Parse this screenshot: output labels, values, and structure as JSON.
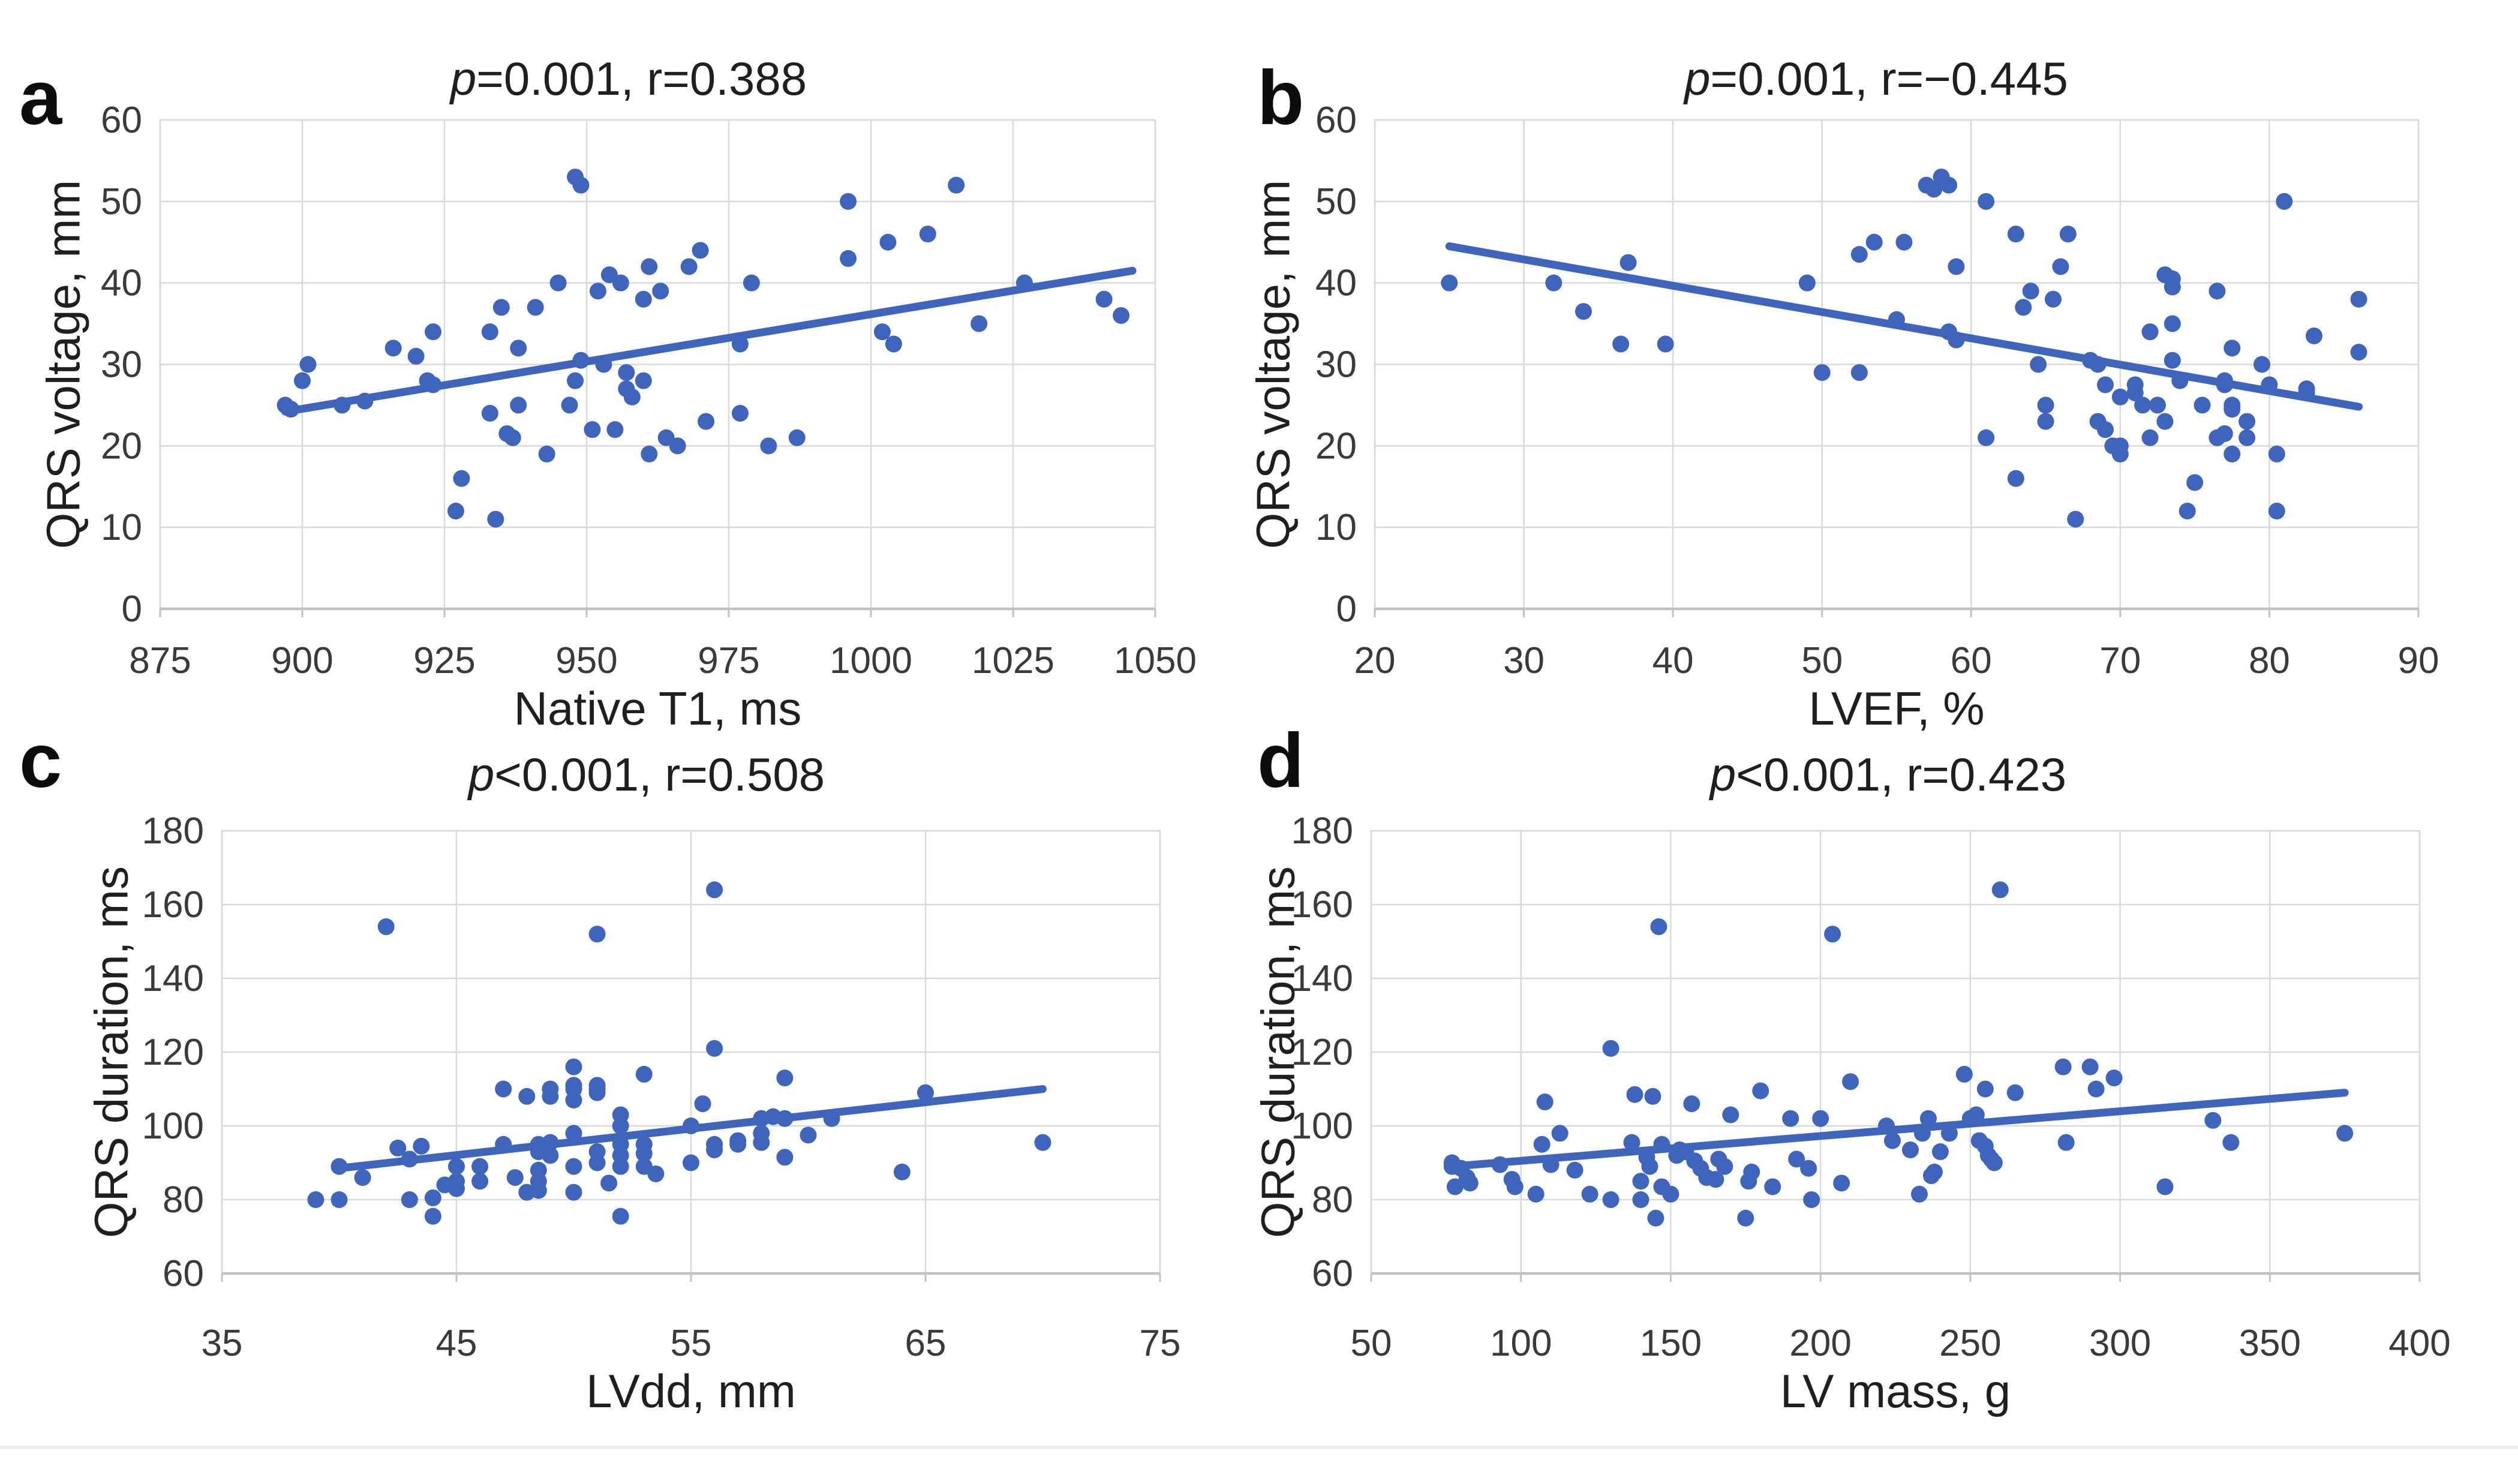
{
  "colors": {
    "background": "#FFFFFF",
    "marker": "#3E64BC",
    "trend": "#3E64BC",
    "grid": "#D9D9D9",
    "axis": "#C2C2C2",
    "tick_text": "#3A3A3A",
    "title_text": "#1F1F1F",
    "divider": "#EDEDED"
  },
  "chart_data": [
    {
      "id": "a",
      "panel_label": "a",
      "type": "scatter",
      "title": "p=0.001, r=0.388",
      "xlabel": "Native T1, ms",
      "ylabel": "QRS voltage, mm",
      "xlim": [
        875,
        1050
      ],
      "ylim": [
        0,
        60
      ],
      "xticks": [
        875,
        900,
        925,
        950,
        975,
        1000,
        1025,
        1050
      ],
      "yticks": [
        0,
        10,
        20,
        30,
        40,
        50,
        60
      ],
      "grid": true,
      "legend": false,
      "points": [
        [
          897,
          25
        ],
        [
          898,
          24.5
        ],
        [
          900,
          28
        ],
        [
          901,
          30
        ],
        [
          907,
          25
        ],
        [
          911,
          25.5
        ],
        [
          916,
          32
        ],
        [
          920,
          31
        ],
        [
          922,
          28
        ],
        [
          923,
          27.5
        ],
        [
          923,
          34
        ],
        [
          927,
          12
        ],
        [
          928,
          16
        ],
        [
          933,
          24
        ],
        [
          933,
          34
        ],
        [
          934,
          11
        ],
        [
          935,
          37
        ],
        [
          936,
          21.5
        ],
        [
          937,
          21
        ],
        [
          938,
          25
        ],
        [
          938,
          32
        ],
        [
          941,
          37
        ],
        [
          943,
          19
        ],
        [
          945,
          40
        ],
        [
          947,
          25
        ],
        [
          948,
          53
        ],
        [
          948,
          28
        ],
        [
          949,
          52
        ],
        [
          949,
          30.5
        ],
        [
          951,
          22
        ],
        [
          952,
          39
        ],
        [
          953,
          30
        ],
        [
          954,
          41
        ],
        [
          955,
          22
        ],
        [
          956,
          40
        ],
        [
          957,
          29
        ],
        [
          957,
          27
        ],
        [
          958,
          26
        ],
        [
          960,
          28
        ],
        [
          960,
          38
        ],
        [
          961,
          19
        ],
        [
          961,
          42
        ],
        [
          963,
          39
        ],
        [
          964,
          21
        ],
        [
          966,
          20
        ],
        [
          968,
          42
        ],
        [
          970,
          44
        ],
        [
          971,
          23
        ],
        [
          977,
          24
        ],
        [
          977,
          32.5
        ],
        [
          979,
          40
        ],
        [
          982,
          20
        ],
        [
          987,
          21
        ],
        [
          996,
          43
        ],
        [
          996,
          50
        ],
        [
          1002,
          34
        ],
        [
          1003,
          45
        ],
        [
          1004,
          32.5
        ],
        [
          1010,
          46
        ],
        [
          1015,
          52
        ],
        [
          1019,
          35
        ],
        [
          1027,
          40
        ],
        [
          1041,
          38
        ],
        [
          1044,
          36
        ]
      ],
      "trend": {
        "x": [
          897,
          1046
        ],
        "y": [
          24.2,
          41.5
        ]
      }
    },
    {
      "id": "b",
      "panel_label": "b",
      "type": "scatter",
      "title": "p=0.001, r=−0.445",
      "xlabel": "LVEF, %",
      "ylabel": "QRS voltage, mm",
      "xlim": [
        20,
        90
      ],
      "ylim": [
        0,
        60
      ],
      "xticks": [
        20,
        30,
        40,
        50,
        60,
        70,
        80,
        90
      ],
      "yticks": [
        0,
        10,
        20,
        30,
        40,
        50,
        60
      ],
      "grid": true,
      "legend": false,
      "points": [
        [
          25,
          40
        ],
        [
          32,
          40
        ],
        [
          34,
          36.5
        ],
        [
          36.5,
          32.5
        ],
        [
          37,
          42.5
        ],
        [
          39.5,
          32.5
        ],
        [
          49,
          40
        ],
        [
          50,
          29
        ],
        [
          52.5,
          43.5
        ],
        [
          52.5,
          29
        ],
        [
          53.5,
          45
        ],
        [
          55,
          35.5
        ],
        [
          55.5,
          45
        ],
        [
          57,
          52
        ],
        [
          57.5,
          51.5
        ],
        [
          58,
          53
        ],
        [
          58.5,
          52
        ],
        [
          58.5,
          34
        ],
        [
          59,
          33
        ],
        [
          59,
          42
        ],
        [
          61,
          50
        ],
        [
          61,
          21
        ],
        [
          63,
          16
        ],
        [
          63,
          46
        ],
        [
          63.5,
          37
        ],
        [
          64,
          39
        ],
        [
          64.5,
          30
        ],
        [
          65,
          23
        ],
        [
          65,
          25
        ],
        [
          65.5,
          38
        ],
        [
          66,
          42
        ],
        [
          66.5,
          46
        ],
        [
          67,
          11
        ],
        [
          68,
          30.5
        ],
        [
          68.5,
          30
        ],
        [
          68.5,
          23
        ],
        [
          69,
          22
        ],
        [
          69,
          27.5
        ],
        [
          69.5,
          20
        ],
        [
          70,
          20
        ],
        [
          70,
          19
        ],
        [
          70,
          26
        ],
        [
          71,
          26.5
        ],
        [
          71,
          27.5
        ],
        [
          71.5,
          25
        ],
        [
          72,
          34
        ],
        [
          72,
          21
        ],
        [
          72.5,
          25
        ],
        [
          73,
          41
        ],
        [
          73,
          23
        ],
        [
          73.5,
          40.5
        ],
        [
          73.5,
          39.5
        ],
        [
          73.5,
          30.5
        ],
        [
          73.5,
          35
        ],
        [
          74,
          28
        ],
        [
          74.5,
          12
        ],
        [
          75,
          15.5
        ],
        [
          75.5,
          25
        ],
        [
          76.5,
          39
        ],
        [
          76.5,
          21
        ],
        [
          77,
          21.5
        ],
        [
          77,
          27.5
        ],
        [
          77,
          28
        ],
        [
          77.5,
          32
        ],
        [
          77.5,
          25
        ],
        [
          77.5,
          24.5
        ],
        [
          77.5,
          19
        ],
        [
          78.5,
          21
        ],
        [
          78.5,
          23
        ],
        [
          79.5,
          30
        ],
        [
          80,
          27.5
        ],
        [
          80.5,
          19
        ],
        [
          80.5,
          12
        ],
        [
          81,
          50
        ],
        [
          82.5,
          27
        ],
        [
          82.5,
          26.5
        ],
        [
          83,
          33.5
        ],
        [
          86,
          38
        ],
        [
          86,
          31.5
        ]
      ],
      "trend": {
        "x": [
          25,
          86
        ],
        "y": [
          44.5,
          24.8
        ]
      }
    },
    {
      "id": "c",
      "panel_label": "c",
      "type": "scatter",
      "title": "p<0.001, r=0.508",
      "xlabel": "LVdd, mm",
      "ylabel": "QRS duration, ms",
      "xlim": [
        35,
        75
      ],
      "ylim": [
        60,
        180
      ],
      "xticks": [
        35,
        45,
        55,
        65,
        75
      ],
      "yticks": [
        60,
        80,
        100,
        120,
        140,
        160,
        180
      ],
      "grid": true,
      "legend": false,
      "points": [
        [
          39,
          80
        ],
        [
          40,
          80
        ],
        [
          40,
          89
        ],
        [
          41,
          86
        ],
        [
          42,
          154
        ],
        [
          42.5,
          94
        ],
        [
          43,
          91
        ],
        [
          43,
          80
        ],
        [
          43.5,
          94.5
        ],
        [
          44,
          75.5
        ],
        [
          44,
          80.5
        ],
        [
          44.5,
          84
        ],
        [
          45,
          89
        ],
        [
          45,
          85
        ],
        [
          45,
          83
        ],
        [
          46,
          89
        ],
        [
          46,
          85
        ],
        [
          47,
          95
        ],
        [
          47,
          110
        ],
        [
          47.5,
          86
        ],
        [
          48,
          82
        ],
        [
          48,
          108
        ],
        [
          48.5,
          95
        ],
        [
          48.5,
          93
        ],
        [
          48.5,
          88
        ],
        [
          48.5,
          85
        ],
        [
          48.5,
          82.5
        ],
        [
          49,
          110
        ],
        [
          49,
          108
        ],
        [
          49,
          95.5
        ],
        [
          49,
          92
        ],
        [
          50,
          116
        ],
        [
          50,
          111
        ],
        [
          50,
          110
        ],
        [
          50,
          107
        ],
        [
          50,
          98
        ],
        [
          50,
          89
        ],
        [
          50,
          82
        ],
        [
          51,
          152
        ],
        [
          51,
          111
        ],
        [
          51,
          110
        ],
        [
          51,
          109
        ],
        [
          51,
          93
        ],
        [
          51,
          90
        ],
        [
          51.5,
          84.5
        ],
        [
          52,
          103
        ],
        [
          52,
          100
        ],
        [
          52,
          95
        ],
        [
          52,
          92
        ],
        [
          52,
          89
        ],
        [
          52,
          75.5
        ],
        [
          53,
          114
        ],
        [
          53,
          95
        ],
        [
          53,
          92.5
        ],
        [
          53,
          89
        ],
        [
          53.5,
          87
        ],
        [
          55,
          90
        ],
        [
          55,
          100
        ],
        [
          55.5,
          106
        ],
        [
          56,
          164
        ],
        [
          56,
          121
        ],
        [
          56,
          95
        ],
        [
          56,
          93.5
        ],
        [
          57,
          96
        ],
        [
          57,
          95
        ],
        [
          58,
          102
        ],
        [
          58,
          98
        ],
        [
          58,
          95.5
        ],
        [
          58.5,
          102.5
        ],
        [
          59,
          113
        ],
        [
          59,
          102
        ],
        [
          59,
          91.5
        ],
        [
          60,
          97.5
        ],
        [
          61,
          102
        ],
        [
          64,
          87.5
        ],
        [
          65,
          109
        ],
        [
          70,
          95.5
        ]
      ],
      "trend": {
        "x": [
          40,
          70
        ],
        "y": [
          88.5,
          110
        ]
      }
    },
    {
      "id": "d",
      "panel_label": "d",
      "type": "scatter",
      "title": "p<0.001, r=0.423",
      "xlabel": "LV mass, g",
      "ylabel": "QRS duration, ms",
      "xlim": [
        50,
        400
      ],
      "ylim": [
        60,
        180
      ],
      "xticks": [
        50,
        100,
        150,
        200,
        250,
        300,
        350,
        400
      ],
      "yticks": [
        60,
        80,
        100,
        120,
        140,
        160,
        180
      ],
      "grid": true,
      "legend": false,
      "points": [
        [
          77,
          90
        ],
        [
          77,
          89
        ],
        [
          78,
          83.5
        ],
        [
          80,
          88.5
        ],
        [
          82,
          86
        ],
        [
          83,
          84.5
        ],
        [
          93,
          89.5
        ],
        [
          97,
          85.5
        ],
        [
          98,
          83.5
        ],
        [
          105,
          81.5
        ],
        [
          107,
          95
        ],
        [
          108,
          106.5
        ],
        [
          110,
          89.5
        ],
        [
          113,
          98
        ],
        [
          118,
          88
        ],
        [
          123,
          81.5
        ],
        [
          130,
          121
        ],
        [
          130,
          80
        ],
        [
          137,
          95.5
        ],
        [
          138,
          108.5
        ],
        [
          140,
          85
        ],
        [
          140,
          80
        ],
        [
          142,
          91.5
        ],
        [
          143,
          89
        ],
        [
          144,
          108
        ],
        [
          145,
          75
        ],
        [
          146,
          154
        ],
        [
          147,
          95
        ],
        [
          147,
          83.5
        ],
        [
          150,
          81.5
        ],
        [
          152,
          92
        ],
        [
          153,
          93.5
        ],
        [
          155,
          93
        ],
        [
          157,
          106
        ],
        [
          158,
          90.5
        ],
        [
          160,
          88.5
        ],
        [
          162,
          86
        ],
        [
          165,
          85.5
        ],
        [
          166,
          91
        ],
        [
          168,
          89
        ],
        [
          170,
          103
        ],
        [
          175,
          75
        ],
        [
          176,
          85
        ],
        [
          177,
          87.5
        ],
        [
          180,
          109.5
        ],
        [
          184,
          83.5
        ],
        [
          190,
          102
        ],
        [
          192,
          91
        ],
        [
          196,
          88.5
        ],
        [
          197,
          80
        ],
        [
          200,
          102
        ],
        [
          204,
          152
        ],
        [
          207,
          84.5
        ],
        [
          210,
          112
        ],
        [
          222,
          100
        ],
        [
          224,
          96
        ],
        [
          230,
          93.5
        ],
        [
          233,
          81.5
        ],
        [
          234,
          98
        ],
        [
          236,
          102
        ],
        [
          237,
          86.5
        ],
        [
          238,
          87.5
        ],
        [
          240,
          93
        ],
        [
          243,
          98
        ],
        [
          248,
          114
        ],
        [
          250,
          102
        ],
        [
          252,
          103
        ],
        [
          253,
          96
        ],
        [
          255,
          110
        ],
        [
          255,
          94.5
        ],
        [
          256,
          92
        ],
        [
          257,
          91
        ],
        [
          258,
          90
        ],
        [
          260,
          164
        ],
        [
          265,
          109
        ],
        [
          281,
          116
        ],
        [
          282,
          95.5
        ],
        [
          290,
          116
        ],
        [
          292,
          110
        ],
        [
          298,
          113
        ],
        [
          315,
          83.5
        ],
        [
          331,
          101.5
        ],
        [
          337,
          95.5
        ],
        [
          375,
          98
        ]
      ],
      "trend": {
        "x": [
          77,
          375
        ],
        "y": [
          89,
          109
        ]
      }
    }
  ]
}
